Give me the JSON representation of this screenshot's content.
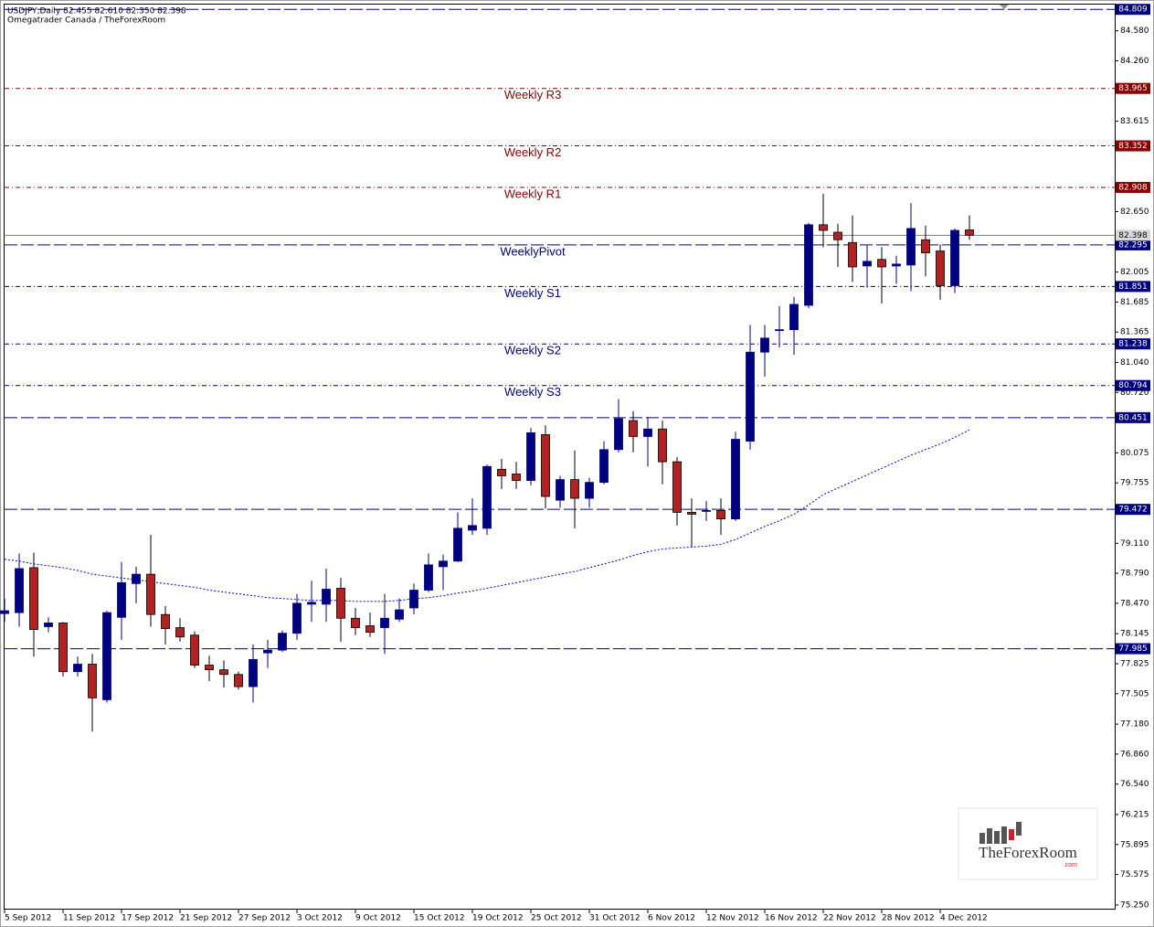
{
  "chart_data": {
    "type": "candlestick",
    "title": "USDJPY,Daily  82.455 82.610 82.350 82.398",
    "subtitle": "Omegatrader Canada / TheForexRoom",
    "categories": [
      "5 Sep 2012",
      null,
      null,
      null,
      "11 Sep 2012",
      null,
      null,
      null,
      "17 Sep 2012",
      null,
      null,
      null,
      "21 Sep 2012",
      null,
      null,
      null,
      "27 Sep 2012",
      null,
      null,
      null,
      "3 Oct 2012",
      null,
      null,
      null,
      "9 Oct 2012",
      null,
      null,
      null,
      "15 Oct 2012",
      null,
      null,
      null,
      "19 Oct 2012",
      null,
      null,
      null,
      "25 Oct 2012",
      null,
      null,
      null,
      "31 Oct 2012",
      null,
      null,
      null,
      "6 Nov 2012",
      null,
      null,
      null,
      "12 Nov 2012",
      null,
      null,
      null,
      "16 Nov 2012",
      null,
      null,
      null,
      "22 Nov 2012",
      null,
      null,
      null,
      "28 Nov 2012",
      null,
      null,
      null,
      "4 Dec 2012",
      null,
      null
    ],
    "open": [
      78.36,
      78.37,
      78.85,
      78.22,
      78.26,
      77.74,
      77.82,
      77.44,
      78.32,
      78.68,
      78.78,
      78.35,
      78.21,
      78.13,
      77.81,
      77.76,
      77.71,
      77.58,
      77.94,
      77.97,
      78.15,
      78.46,
      78.46,
      78.63,
      78.31,
      78.23,
      78.21,
      78.3,
      78.42,
      78.61,
      78.86,
      78.92,
      79.25,
      79.27,
      79.9,
      79.85,
      79.78,
      80.27,
      79.57,
      79.79,
      79.59,
      79.76,
      80.11,
      80.42,
      80.25,
      80.33,
      79.98,
      79.44,
      79.46,
      79.46,
      79.37,
      80.2,
      81.15,
      81.38,
      81.39,
      81.65,
      82.51,
      82.43,
      82.32,
      82.07,
      82.14,
      82.07,
      82.08,
      82.35,
      82.23,
      81.86,
      82.455
    ],
    "high": [
      78.52,
      79.0,
      79.01,
      78.32,
      78.27,
      77.9,
      77.93,
      78.39,
      78.91,
      78.86,
      79.2,
      78.44,
      78.31,
      78.17,
      77.91,
      77.86,
      77.74,
      78.03,
      78.08,
      78.18,
      78.57,
      78.71,
      78.84,
      78.74,
      78.42,
      78.37,
      78.57,
      78.52,
      78.68,
      79.0,
      78.99,
      79.44,
      79.59,
      79.95,
      80.01,
      79.98,
      80.34,
      80.37,
      79.83,
      80.1,
      79.81,
      80.2,
      80.65,
      80.52,
      80.46,
      80.42,
      80.03,
      79.59,
      79.56,
      79.59,
      80.3,
      81.44,
      81.44,
      81.64,
      81.74,
      82.53,
      82.84,
      82.52,
      82.61,
      82.29,
      82.27,
      82.18,
      82.74,
      82.5,
      82.3,
      82.47,
      82.61
    ],
    "low": [
      78.27,
      78.22,
      77.9,
      78.16,
      77.69,
      77.69,
      77.1,
      77.41,
      78.08,
      78.47,
      78.22,
      78.03,
      78.06,
      77.78,
      77.64,
      77.57,
      77.55,
      77.41,
      77.78,
      77.95,
      78.08,
      78.27,
      78.27,
      78.06,
      78.13,
      78.11,
      77.93,
      78.27,
      78.35,
      78.59,
      78.61,
      78.91,
      79.2,
      79.2,
      79.69,
      79.69,
      79.73,
      79.48,
      79.49,
      79.27,
      79.49,
      79.74,
      80.08,
      80.08,
      79.93,
      79.74,
      79.3,
      79.07,
      79.35,
      79.2,
      79.35,
      80.11,
      80.89,
      81.2,
      81.12,
      81.62,
      82.27,
      82.06,
      81.9,
      81.84,
      81.67,
      81.88,
      81.8,
      81.96,
      81.71,
      81.78,
      82.35
    ],
    "close": [
      78.39,
      78.84,
      78.19,
      78.26,
      77.74,
      77.82,
      77.46,
      78.37,
      78.69,
      78.78,
      78.35,
      78.2,
      78.11,
      77.81,
      77.76,
      77.71,
      77.58,
      77.87,
      77.97,
      78.15,
      78.47,
      78.48,
      78.62,
      78.31,
      78.21,
      78.16,
      78.31,
      78.4,
      78.61,
      78.88,
      78.92,
      79.27,
      79.3,
      79.93,
      79.83,
      79.78,
      80.29,
      79.61,
      79.79,
      79.59,
      79.76,
      80.11,
      80.44,
      80.25,
      80.33,
      79.98,
      79.44,
      79.42,
      79.46,
      79.37,
      80.22,
      81.15,
      81.3,
      81.39,
      81.66,
      82.51,
      82.45,
      82.35,
      82.06,
      82.12,
      82.06,
      82.09,
      82.47,
      82.21,
      81.86,
      82.45,
      82.398
    ],
    "up_color": "#00007f",
    "down_color": "#b22222",
    "ma": {
      "color": "#0000e6",
      "values": [
        78.94,
        78.92,
        78.89,
        78.87,
        78.85,
        78.82,
        78.78,
        78.76,
        78.74,
        78.72,
        78.7,
        78.68,
        78.66,
        78.64,
        78.61,
        78.59,
        78.57,
        78.55,
        78.53,
        78.52,
        78.51,
        78.5,
        78.5,
        78.5,
        78.49,
        78.49,
        78.49,
        78.5,
        78.52,
        78.53,
        78.55,
        78.58,
        78.6,
        78.63,
        78.66,
        78.69,
        78.72,
        78.75,
        78.78,
        78.81,
        78.85,
        78.89,
        78.93,
        78.98,
        79.02,
        79.05,
        79.06,
        79.07,
        79.08,
        79.1,
        79.15,
        79.22,
        79.29,
        79.35,
        79.42,
        79.52,
        79.63,
        79.7,
        79.77,
        79.84,
        79.91,
        79.98,
        80.05,
        80.11,
        80.17,
        80.24,
        80.32
      ]
    },
    "levels": [
      {
        "value": 84.809,
        "color": "#00007f",
        "style": "dashed"
      },
      {
        "value": 83.965,
        "label": "Weekly R3",
        "color": "#8b0000",
        "style": "dash-dot"
      },
      {
        "value": 83.352,
        "label": "Weekly R2",
        "color": "#8b0000",
        "style": "dash-dot"
      },
      {
        "value": 82.908,
        "label": "Weekly R1",
        "color": "#8b0000",
        "style": "dash-dot"
      },
      {
        "value": 82.295,
        "label": "WeeklyPivot",
        "color": "#00007f",
        "style": "dashed"
      },
      {
        "value": 81.851,
        "label": "Weekly S1",
        "color": "#00007f",
        "style": "dash-dot"
      },
      {
        "value": 81.238,
        "label": "Weekly S2",
        "color": "#00007f",
        "style": "dash-dot"
      },
      {
        "value": 80.794,
        "label": "Weekly S3",
        "color": "#00007f",
        "style": "dash-dot"
      },
      {
        "value": 80.451,
        "color": "#00007f",
        "style": "dashed"
      },
      {
        "value": 79.472,
        "color": "#00007f",
        "style": "dashed"
      },
      {
        "value": 77.985,
        "color": "#00007f",
        "style": "dashed"
      }
    ],
    "last_price": {
      "value": 82.398,
      "color": "#808080"
    },
    "ylim": [
      75.2,
      84.86
    ],
    "yticks": [
      {
        "value": 84.58,
        "label": "84.580"
      },
      {
        "value": 84.26,
        "label": "84.260"
      },
      83.615,
      {
        "value": 82.65,
        "label": "82.650"
      },
      82.005,
      81.685,
      81.365,
      {
        "value": 81.04,
        "label": "81.040"
      },
      {
        "value": 80.72,
        "label": "80.720"
      },
      80.075,
      79.755,
      {
        "value": 79.11,
        "label": "79.110"
      },
      {
        "value": 78.79,
        "label": "78.790"
      },
      {
        "value": 78.47,
        "label": "78.470"
      },
      78.145,
      77.825,
      77.505,
      {
        "value": 77.18,
        "label": "77.180"
      },
      {
        "value": 76.86,
        "label": "76.860"
      },
      {
        "value": 76.54,
        "label": "76.540"
      },
      76.215,
      75.895,
      75.575,
      {
        "value": 75.25,
        "label": "75.250"
      }
    ],
    "watermark": {
      "text": "TheForexRoom",
      "sub": ".com"
    }
  }
}
